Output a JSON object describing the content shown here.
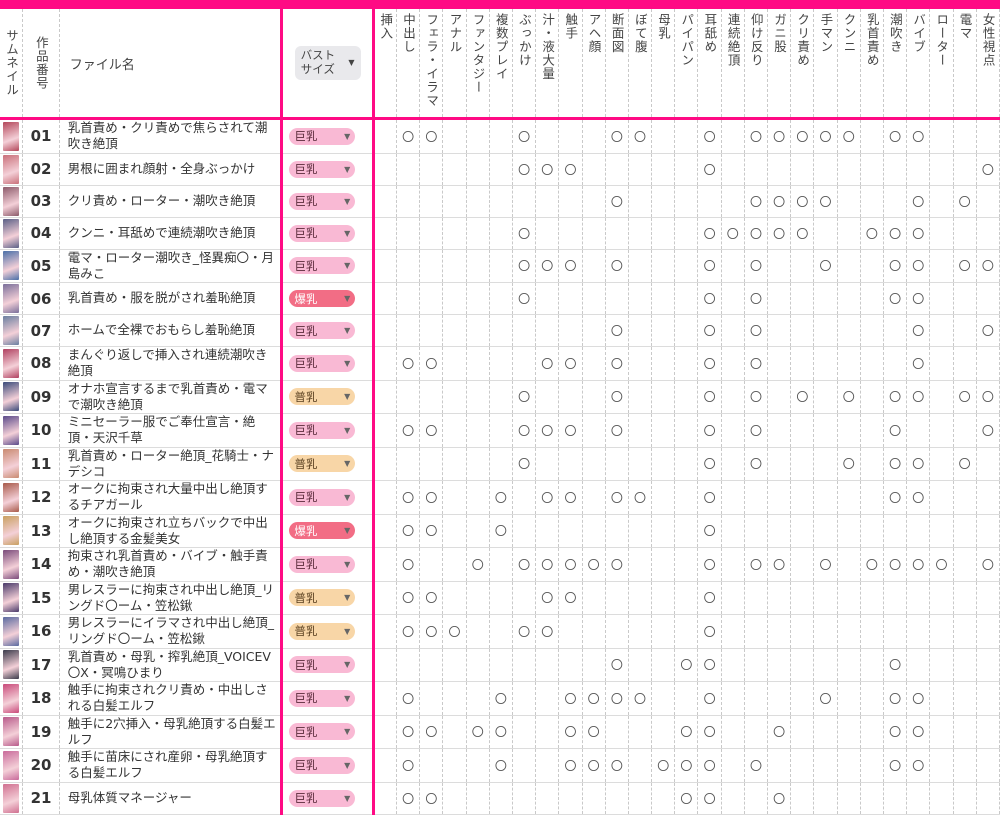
{
  "colors": {
    "accent": "#ff0a84"
  },
  "header": {
    "thumb": "サムネイル",
    "no": "作品番号",
    "file": "ファイル名",
    "bust_select": {
      "line1": "バスト",
      "line2": "サイズ"
    },
    "tags": [
      "挿入",
      "中出し",
      "フェラ・イラマ",
      "アナル",
      "ファンタジー",
      "複数プレイ",
      "ぶっかけ",
      "汁・液大量",
      "触手",
      "アヘ顔",
      "断面図",
      "ぼて腹",
      "母乳",
      "パイパン",
      "耳舐め",
      "連続絶頂",
      "仰け反り",
      "ガニ股",
      "クリ責め",
      "手マン",
      "クンニ",
      "乳首責め",
      "潮吹き",
      "バイブ",
      "ローター",
      "電マ",
      "女性視点"
    ]
  },
  "rows": [
    {
      "no": "01",
      "title": "乳首責め・クリ責めで焦らされて潮吹き絶頂",
      "bust": "巨乳",
      "thumb": "#b3475a",
      "marks": [
        "",
        "〇",
        "〇",
        "",
        "",
        "",
        "〇",
        "",
        "",
        "",
        "〇",
        "〇",
        "",
        "",
        "〇",
        "",
        "〇",
        "〇",
        "〇",
        "〇",
        "〇",
        "",
        "〇",
        "〇",
        "",
        "",
        ""
      ]
    },
    {
      "no": "02",
      "title": "男根に囲まれ顔射・全身ぶっかけ",
      "bust": "巨乳",
      "thumb": "#c9707a",
      "marks": [
        "",
        "",
        "",
        "",
        "",
        "",
        "〇",
        "〇",
        "〇",
        "",
        "",
        "",
        "",
        "",
        "〇",
        "",
        "",
        "",
        "",
        "",
        "",
        "",
        "",
        "",
        "",
        "",
        "〇"
      ]
    },
    {
      "no": "03",
      "title": "クリ責め・ローター・潮吹き絶頂",
      "bust": "巨乳",
      "thumb": "#8c5a6a",
      "marks": [
        "",
        "",
        "",
        "",
        "",
        "",
        "",
        "",
        "",
        "",
        "〇",
        "",
        "",
        "",
        "",
        "",
        "〇",
        "〇",
        "〇",
        "〇",
        "",
        "",
        "",
        "〇",
        "",
        "〇",
        ""
      ]
    },
    {
      "no": "04",
      "title": "クンニ・耳舐めで連続潮吹き絶頂",
      "bust": "巨乳",
      "thumb": "#5a5f86",
      "marks": [
        "",
        "",
        "",
        "",
        "",
        "",
        "〇",
        "",
        "",
        "",
        "",
        "",
        "",
        "",
        "〇",
        "〇",
        "〇",
        "〇",
        "〇",
        "",
        "",
        "〇",
        "〇",
        "〇",
        "",
        "",
        ""
      ]
    },
    {
      "no": "05",
      "title": "電マ・ローター潮吹き_怪異痴〇・月島みこ",
      "bust": "巨乳",
      "thumb": "#4a6fa8",
      "marks": [
        "",
        "",
        "",
        "",
        "",
        "",
        "〇",
        "〇",
        "〇",
        "",
        "〇",
        "",
        "",
        "",
        "〇",
        "",
        "〇",
        "",
        "",
        "〇",
        "",
        "",
        "〇",
        "〇",
        "",
        "〇",
        "〇"
      ]
    },
    {
      "no": "06",
      "title": "乳首責め・服を脱がされ羞恥絶頂",
      "bust": "爆乳",
      "thumb": "#7a6f9a",
      "marks": [
        "",
        "",
        "",
        "",
        "",
        "",
        "〇",
        "",
        "",
        "",
        "",
        "",
        "",
        "",
        "〇",
        "",
        "〇",
        "",
        "",
        "",
        "",
        "",
        "〇",
        "〇",
        "",
        "",
        ""
      ]
    },
    {
      "no": "07",
      "title": "ホームで全裸でおもらし羞恥絶頂",
      "bust": "巨乳",
      "thumb": "#6a7fa0",
      "marks": [
        "",
        "",
        "",
        "",
        "",
        "",
        "",
        "",
        "",
        "",
        "〇",
        "",
        "",
        "",
        "〇",
        "",
        "〇",
        "",
        "",
        "",
        "",
        "",
        "",
        "〇",
        "",
        "",
        "〇"
      ]
    },
    {
      "no": "08",
      "title": "まんぐり返しで挿入され連続潮吹き絶頂",
      "bust": "巨乳",
      "thumb": "#b04060",
      "marks": [
        "",
        "〇",
        "〇",
        "",
        "",
        "",
        "",
        "〇",
        "〇",
        "",
        "〇",
        "",
        "",
        "",
        "〇",
        "",
        "〇",
        "",
        "",
        "",
        "",
        "",
        "",
        "〇",
        "",
        "",
        ""
      ]
    },
    {
      "no": "09",
      "title": "オナホ宣言するまで乳首責め・電マで潮吹き絶頂",
      "bust": "普乳",
      "thumb": "#3a4a7a",
      "marks": [
        "",
        "",
        "",
        "",
        "",
        "",
        "〇",
        "",
        "",
        "",
        "〇",
        "",
        "",
        "",
        "〇",
        "",
        "〇",
        "",
        "〇",
        "",
        "〇",
        "",
        "〇",
        "〇",
        "",
        "〇",
        "〇"
      ]
    },
    {
      "no": "10",
      "title": "ミニセーラー服でご奉仕宣言・絶頂・天沢千草",
      "bust": "巨乳",
      "thumb": "#5a4a8a",
      "marks": [
        "",
        "〇",
        "〇",
        "",
        "",
        "",
        "〇",
        "〇",
        "〇",
        "",
        "〇",
        "",
        "",
        "",
        "〇",
        "",
        "〇",
        "",
        "",
        "",
        "",
        "",
        "〇",
        "",
        "",
        "",
        "〇"
      ]
    },
    {
      "no": "11",
      "title": "乳首責め・ローター絶頂_花騎士・ナデシコ",
      "bust": "普乳",
      "thumb": "#c98a70",
      "marks": [
        "",
        "",
        "",
        "",
        "",
        "",
        "〇",
        "",
        "",
        "",
        "",
        "",
        "",
        "",
        "〇",
        "",
        "〇",
        "",
        "",
        "",
        "〇",
        "",
        "〇",
        "〇",
        "",
        "〇",
        ""
      ]
    },
    {
      "no": "12",
      "title": "オークに拘束され大量中出し絶頂するチアガール",
      "bust": "巨乳",
      "thumb": "#a85a4a",
      "marks": [
        "",
        "〇",
        "〇",
        "",
        "",
        "〇",
        "",
        "〇",
        "〇",
        "",
        "〇",
        "〇",
        "",
        "",
        "〇",
        "",
        "",
        "",
        "",
        "",
        "",
        "",
        "〇",
        "〇",
        "",
        "",
        ""
      ]
    },
    {
      "no": "13",
      "title": "オークに拘束され立ちバックで中出し絶頂する金髪美女",
      "bust": "爆乳",
      "thumb": "#c9a060",
      "marks": [
        "",
        "〇",
        "〇",
        "",
        "",
        "〇",
        "",
        "",
        "",
        "",
        "",
        "",
        "",
        "",
        "〇",
        "",
        "",
        "",
        "",
        "",
        "",
        "",
        "",
        "",
        "",
        "",
        ""
      ]
    },
    {
      "no": "14",
      "title": "拘束され乳首責め・バイブ・触手責め・潮吹き絶頂",
      "bust": "巨乳",
      "thumb": "#7a4a7a",
      "marks": [
        "",
        "〇",
        "",
        "",
        "〇",
        "",
        "〇",
        "〇",
        "〇",
        "〇",
        "〇",
        "",
        "",
        "",
        "〇",
        "",
        "〇",
        "〇",
        "",
        "〇",
        "",
        "〇",
        "〇",
        "〇",
        "〇",
        "",
        "〇"
      ]
    },
    {
      "no": "15",
      "title": "男レスラーに拘束され中出し絶頂_リングド〇ーム・笠松鍬",
      "bust": "普乳",
      "thumb": "#4a3a6a",
      "marks": [
        "",
        "〇",
        "〇",
        "",
        "",
        "",
        "",
        "〇",
        "〇",
        "",
        "",
        "",
        "",
        "",
        "〇",
        "",
        "",
        "",
        "",
        "",
        "",
        "",
        "",
        "",
        "",
        "",
        ""
      ]
    },
    {
      "no": "16",
      "title": "男レスラーにイラマされ中出し絶頂_リングド〇ーム・笠松鍬",
      "bust": "普乳",
      "thumb": "#5a6aa0",
      "marks": [
        "",
        "〇",
        "〇",
        "〇",
        "",
        "",
        "〇",
        "〇",
        "",
        "",
        "",
        "",
        "",
        "",
        "〇",
        "",
        "",
        "",
        "",
        "",
        "",
        "",
        "",
        "",
        "",
        "",
        ""
      ]
    },
    {
      "no": "17",
      "title": "乳首責め・母乳・搾乳絶頂_VOICEV〇X・冥鳴ひまり",
      "bust": "巨乳",
      "thumb": "#3a3a4a",
      "marks": [
        "",
        "",
        "",
        "",
        "",
        "",
        "",
        "",
        "",
        "",
        "〇",
        "",
        "",
        "〇",
        "〇",
        "",
        "",
        "",
        "",
        "",
        "",
        "",
        "〇",
        "",
        "",
        "",
        ""
      ]
    },
    {
      "no": "18",
      "title": "触手に拘束されクリ責め・中出しされる白髪エルフ",
      "bust": "巨乳",
      "thumb": "#c94a7a",
      "marks": [
        "",
        "〇",
        "",
        "",
        "",
        "〇",
        "",
        "",
        "〇",
        "〇",
        "〇",
        "〇",
        "",
        "",
        "〇",
        "",
        "",
        "",
        "",
        "〇",
        "",
        "",
        "〇",
        "〇",
        "",
        "",
        ""
      ]
    },
    {
      "no": "19",
      "title": "触手に2穴挿入・母乳絶頂する白髪エルフ",
      "bust": "巨乳",
      "thumb": "#b85a8a",
      "marks": [
        "",
        "〇",
        "〇",
        "",
        "〇",
        "〇",
        "",
        "",
        "〇",
        "〇",
        "",
        "",
        "",
        "〇",
        "〇",
        "",
        "",
        "〇",
        "",
        "",
        "",
        "",
        "〇",
        "〇",
        "",
        "",
        ""
      ]
    },
    {
      "no": "20",
      "title": "触手に苗床にされ産卵・母乳絶頂する白髪エルフ",
      "bust": "巨乳",
      "thumb": "#c96a9a",
      "marks": [
        "",
        "〇",
        "",
        "",
        "",
        "〇",
        "",
        "",
        "〇",
        "〇",
        "〇",
        "",
        "〇",
        "〇",
        "〇",
        "",
        "〇",
        "",
        "",
        "",
        "",
        "",
        "〇",
        "〇",
        "",
        "",
        ""
      ]
    },
    {
      "no": "21",
      "title": "母乳体質マネージャー",
      "bust": "巨乳",
      "thumb": "#d07090",
      "marks": [
        "",
        "〇",
        "〇",
        "",
        "",
        "",
        "",
        "",
        "",
        "",
        "",
        "",
        "",
        "〇",
        "〇",
        "",
        "",
        "〇",
        "",
        "",
        "",
        "",
        "",
        "",
        "",
        "",
        ""
      ]
    }
  ]
}
